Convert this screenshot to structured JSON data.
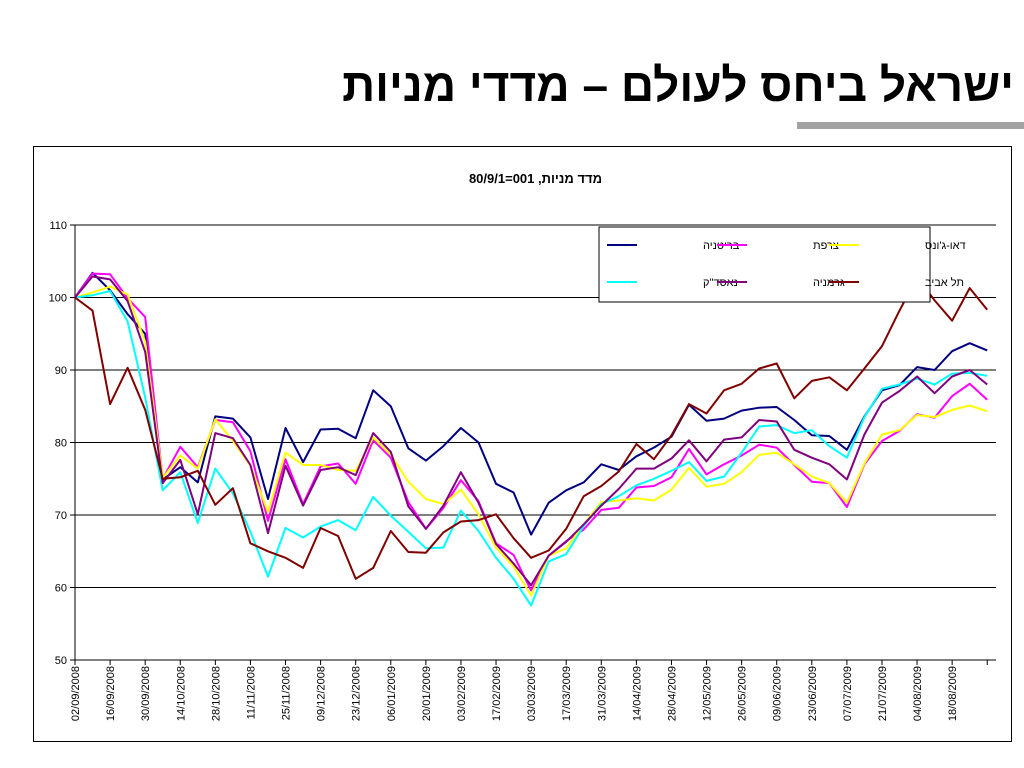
{
  "slide": {
    "title": "ישראל ביחס לעולם – מדדי מניות"
  },
  "chart_data": {
    "type": "line",
    "title": "מדד מניות, 001=80/9/1",
    "ylim": [
      50,
      110
    ],
    "yticks": [
      50,
      60,
      70,
      80,
      90,
      100,
      110
    ],
    "grid": "horizontal",
    "legend_position": "top-right",
    "x": [
      "02/09/2008",
      "09/09/2008",
      "16/09/2008",
      "23/09/2008",
      "30/09/2008",
      "07/10/2008",
      "14/10/2008",
      "21/10/2008",
      "28/10/2008",
      "04/11/2008",
      "11/11/2008",
      "18/11/2008",
      "25/11/2008",
      "02/12/2008",
      "09/12/2008",
      "16/12/2008",
      "23/12/2008",
      "30/12/2008",
      "06/01/2009",
      "13/01/2009",
      "20/01/2009",
      "27/01/2009",
      "03/02/2009",
      "10/02/2009",
      "17/02/2009",
      "24/02/2009",
      "03/03/2009",
      "10/03/2009",
      "17/03/2009",
      "24/03/2009",
      "31/03/2009",
      "07/04/2009",
      "14/04/2009",
      "21/04/2009",
      "28/04/2009",
      "05/05/2009",
      "12/05/2009",
      "19/05/2009",
      "26/05/2009",
      "02/06/2009",
      "09/06/2009",
      "16/06/2009",
      "23/06/2009",
      "30/06/2009",
      "07/07/2009",
      "14/07/2009",
      "21/07/2009",
      "28/07/2009",
      "04/08/2009",
      "11/08/2009",
      "18/08/2009",
      "25/08/2009",
      "01/09/2009"
    ],
    "x_tick_labels": [
      "02/09/2008",
      "16/09/2008",
      "30/09/2008",
      "14/10/2008",
      "28/10/2008",
      "11/11/2008",
      "25/11/2008",
      "09/12/2008",
      "23/12/2008",
      "06/01/2009",
      "20/01/2009",
      "03/02/2009",
      "17/02/2009",
      "03/03/2009",
      "17/03/2009",
      "31/03/2009",
      "14/04/2009",
      "28/04/2009",
      "12/05/2009",
      "26/05/2009",
      "09/06/2009",
      "23/06/2009",
      "07/07/2009",
      "21/07/2009",
      "04/08/2009",
      "18/08/2009"
    ],
    "series": [
      {
        "name": "בריטניה",
        "color": "#000080",
        "values": [
          100,
          103.4,
          101,
          97.7,
          95,
          74.9,
          76.6,
          74.5,
          83.6,
          83.3,
          80.7,
          72.2,
          82,
          77.3,
          81.8,
          81.9,
          80.6,
          87.2,
          85,
          79.2,
          77.5,
          79.5,
          82,
          80,
          74.3,
          73.1,
          67.3,
          71.7,
          73.4,
          74.5,
          77,
          76.2,
          78.1,
          79.3,
          80.8,
          85.2,
          83,
          83.3,
          84.4,
          84.8,
          84.9,
          83.1,
          81,
          80.9,
          79,
          83.6,
          87.2,
          87.9,
          90.4,
          90,
          92.6,
          93.7,
          92.7
        ]
      },
      {
        "name": "צרפת",
        "color": "#ff00ff",
        "values": [
          100,
          103.3,
          103.2,
          99.9,
          97.3,
          75,
          79.4,
          76.6,
          83.1,
          82.8,
          78.8,
          69.2,
          77.7,
          71.5,
          76.7,
          77.1,
          74.3,
          80.3,
          77.9,
          71.8,
          68.1,
          71,
          74.8,
          71.9,
          66.1,
          64.5,
          59.6,
          64.4,
          66.4,
          68,
          70.7,
          71,
          73.8,
          74,
          75.2,
          79.1,
          75.6,
          77,
          78.2,
          79.7,
          79.3,
          76.9,
          74.6,
          74.4,
          71.1,
          77,
          80.2,
          81.6,
          83.9,
          83.4,
          86.4,
          88.1,
          85.9
        ]
      },
      {
        "name": "דאו-ג'ונס",
        "color": "#ffff00",
        "values": [
          100,
          100.7,
          101.5,
          100.4,
          93.9,
          75.1,
          78.2,
          76.4,
          83.2,
          80.2,
          76.8,
          70.4,
          78.6,
          76.9,
          76.9,
          76.2,
          76.1,
          80.7,
          78.3,
          74.6,
          72.2,
          71.5,
          73.5,
          70.1,
          65.5,
          62.9,
          58.9,
          64.4,
          65.4,
          68.7,
          71.8,
          72,
          72.3,
          72,
          73.5,
          76.5,
          73.9,
          74.3,
          75.9,
          78.3,
          78.6,
          77,
          75.3,
          74.4,
          71.7,
          77.1,
          81.1,
          81.7,
          83.8,
          83.5,
          84.5,
          85.1,
          84.3
        ]
      },
      {
        "name": "נאסד\"ק",
        "color": "#00ffff",
        "values": [
          100,
          100.3,
          100.9,
          96.7,
          86.2,
          73.4,
          75.9,
          68.9,
          76.4,
          73,
          67.7,
          61.5,
          68.2,
          66.9,
          68.4,
          69.3,
          67.9,
          72.5,
          69.9,
          67.7,
          65.4,
          65.5,
          70.6,
          67.8,
          64.1,
          61.2,
          57.5,
          63.6,
          64.6,
          68.5,
          71.5,
          72.6,
          74.1,
          75,
          76.1,
          77.3,
          74.7,
          75.3,
          78.6,
          82.2,
          82.4,
          81.3,
          81.7,
          79.5,
          77.9,
          83.5,
          87.4,
          88,
          88.8,
          88,
          89.5,
          89.6,
          89.2
        ]
      },
      {
        "name": "גרמניה",
        "color": "#800080",
        "values": [
          100,
          102.9,
          102.5,
          99.5,
          92.5,
          74.4,
          77.6,
          70.1,
          81.3,
          80.6,
          76.9,
          67.5,
          76.8,
          71.3,
          76.2,
          76.6,
          75.5,
          81.3,
          78.7,
          71.2,
          68.1,
          71.3,
          75.9,
          71.7,
          66,
          63.3,
          60.3,
          64.4,
          66.3,
          68.7,
          71.3,
          73.6,
          76.4,
          76.4,
          77.8,
          80.3,
          77.4,
          80.4,
          80.7,
          83.1,
          82.9,
          79,
          77.9,
          77,
          74.9,
          81.1,
          85.5,
          87.1,
          89.1,
          86.8,
          89.1,
          90,
          88
        ]
      },
      {
        "name": "תל אביב",
        "color": "#800000",
        "values": [
          100,
          98.2,
          85.3,
          90.3,
          84.5,
          75,
          75.2,
          76.1,
          71.4,
          73.7,
          66.1,
          65,
          64.1,
          62.7,
          68.2,
          67.1,
          61.2,
          62.7,
          67.8,
          64.9,
          64.8,
          67.6,
          69.1,
          69.3,
          70.1,
          66.8,
          64.1,
          65.1,
          68.1,
          72.6,
          74,
          76,
          79.8,
          77.7,
          81,
          85.3,
          84,
          87.2,
          88.1,
          90.2,
          90.9,
          86.1,
          88.5,
          89,
          87.2,
          90.2,
          93.3,
          98.2,
          102.8,
          99.6,
          96.8,
          101.3,
          98.3
        ]
      }
    ]
  }
}
